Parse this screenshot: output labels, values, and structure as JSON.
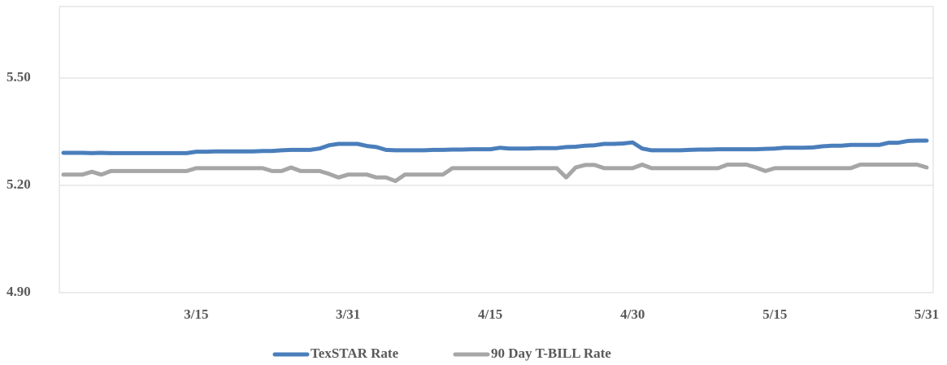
{
  "chart_data": {
    "type": "line",
    "categories": [
      null,
      null,
      null,
      null,
      null,
      null,
      null,
      null,
      null,
      null,
      null,
      null,
      null,
      null,
      "3/15",
      null,
      null,
      null,
      null,
      null,
      null,
      null,
      null,
      null,
      null,
      null,
      null,
      null,
      null,
      null,
      "3/31",
      null,
      null,
      null,
      null,
      null,
      null,
      null,
      null,
      null,
      null,
      null,
      null,
      null,
      null,
      "4/15",
      null,
      null,
      null,
      null,
      null,
      null,
      null,
      null,
      null,
      null,
      null,
      null,
      null,
      null,
      "4/30",
      null,
      null,
      null,
      null,
      null,
      null,
      null,
      null,
      null,
      null,
      null,
      null,
      null,
      null,
      "5/15",
      null,
      null,
      null,
      null,
      null,
      null,
      null,
      null,
      null,
      null,
      null,
      null,
      null,
      null,
      null,
      "5/31"
    ],
    "series": [
      {
        "name": "TexSTAR Rate",
        "color": "#4a7ebb",
        "values": [
          5.291,
          5.291,
          5.291,
          5.29,
          5.291,
          5.29,
          5.29,
          5.29,
          5.29,
          5.29,
          5.29,
          5.29,
          5.29,
          5.29,
          5.294,
          5.294,
          5.295,
          5.295,
          5.295,
          5.295,
          5.295,
          5.296,
          5.296,
          5.298,
          5.299,
          5.299,
          5.299,
          5.303,
          5.312,
          5.316,
          5.316,
          5.316,
          5.31,
          5.307,
          5.299,
          5.298,
          5.298,
          5.298,
          5.298,
          5.299,
          5.299,
          5.3,
          5.3,
          5.301,
          5.301,
          5.301,
          5.305,
          5.303,
          5.303,
          5.303,
          5.304,
          5.304,
          5.304,
          5.307,
          5.308,
          5.311,
          5.312,
          5.316,
          5.316,
          5.317,
          5.32,
          5.303,
          5.298,
          5.298,
          5.298,
          5.298,
          5.299,
          5.3,
          5.3,
          5.301,
          5.301,
          5.301,
          5.301,
          5.301,
          5.302,
          5.303,
          5.305,
          5.305,
          5.305,
          5.306,
          5.309,
          5.311,
          5.311,
          5.313,
          5.313,
          5.313,
          5.313,
          5.319,
          5.319,
          5.324,
          5.325,
          5.325
        ]
      },
      {
        "name": "90 Day T-BILL Rate",
        "color": "#a6a6a6",
        "values": [
          5.23,
          5.23,
          5.23,
          5.238,
          5.23,
          5.24,
          5.24,
          5.24,
          5.24,
          5.24,
          5.24,
          5.24,
          5.24,
          5.24,
          5.248,
          5.248,
          5.248,
          5.248,
          5.248,
          5.248,
          5.248,
          5.248,
          5.24,
          5.24,
          5.25,
          5.24,
          5.24,
          5.24,
          5.232,
          5.222,
          5.23,
          5.23,
          5.23,
          5.222,
          5.222,
          5.212,
          5.23,
          5.23,
          5.23,
          5.23,
          5.23,
          5.248,
          5.248,
          5.248,
          5.248,
          5.248,
          5.248,
          5.248,
          5.248,
          5.248,
          5.248,
          5.248,
          5.248,
          5.222,
          5.25,
          5.257,
          5.257,
          5.248,
          5.248,
          5.248,
          5.248,
          5.258,
          5.248,
          5.248,
          5.248,
          5.248,
          5.248,
          5.248,
          5.248,
          5.248,
          5.258,
          5.258,
          5.258,
          5.25,
          5.24,
          5.248,
          5.248,
          5.248,
          5.248,
          5.248,
          5.248,
          5.248,
          5.248,
          5.248,
          5.258,
          5.258,
          5.258,
          5.258,
          5.258,
          5.258,
          5.258,
          5.25
        ]
      }
    ],
    "ylim": [
      4.9,
      5.7
    ],
    "yticks": [
      {
        "value": 4.9,
        "label": "4.90"
      },
      {
        "value": 5.2,
        "label": "5.20"
      },
      {
        "value": 5.5,
        "label": "5.50"
      }
    ],
    "grid": true,
    "legend": "bottom"
  }
}
